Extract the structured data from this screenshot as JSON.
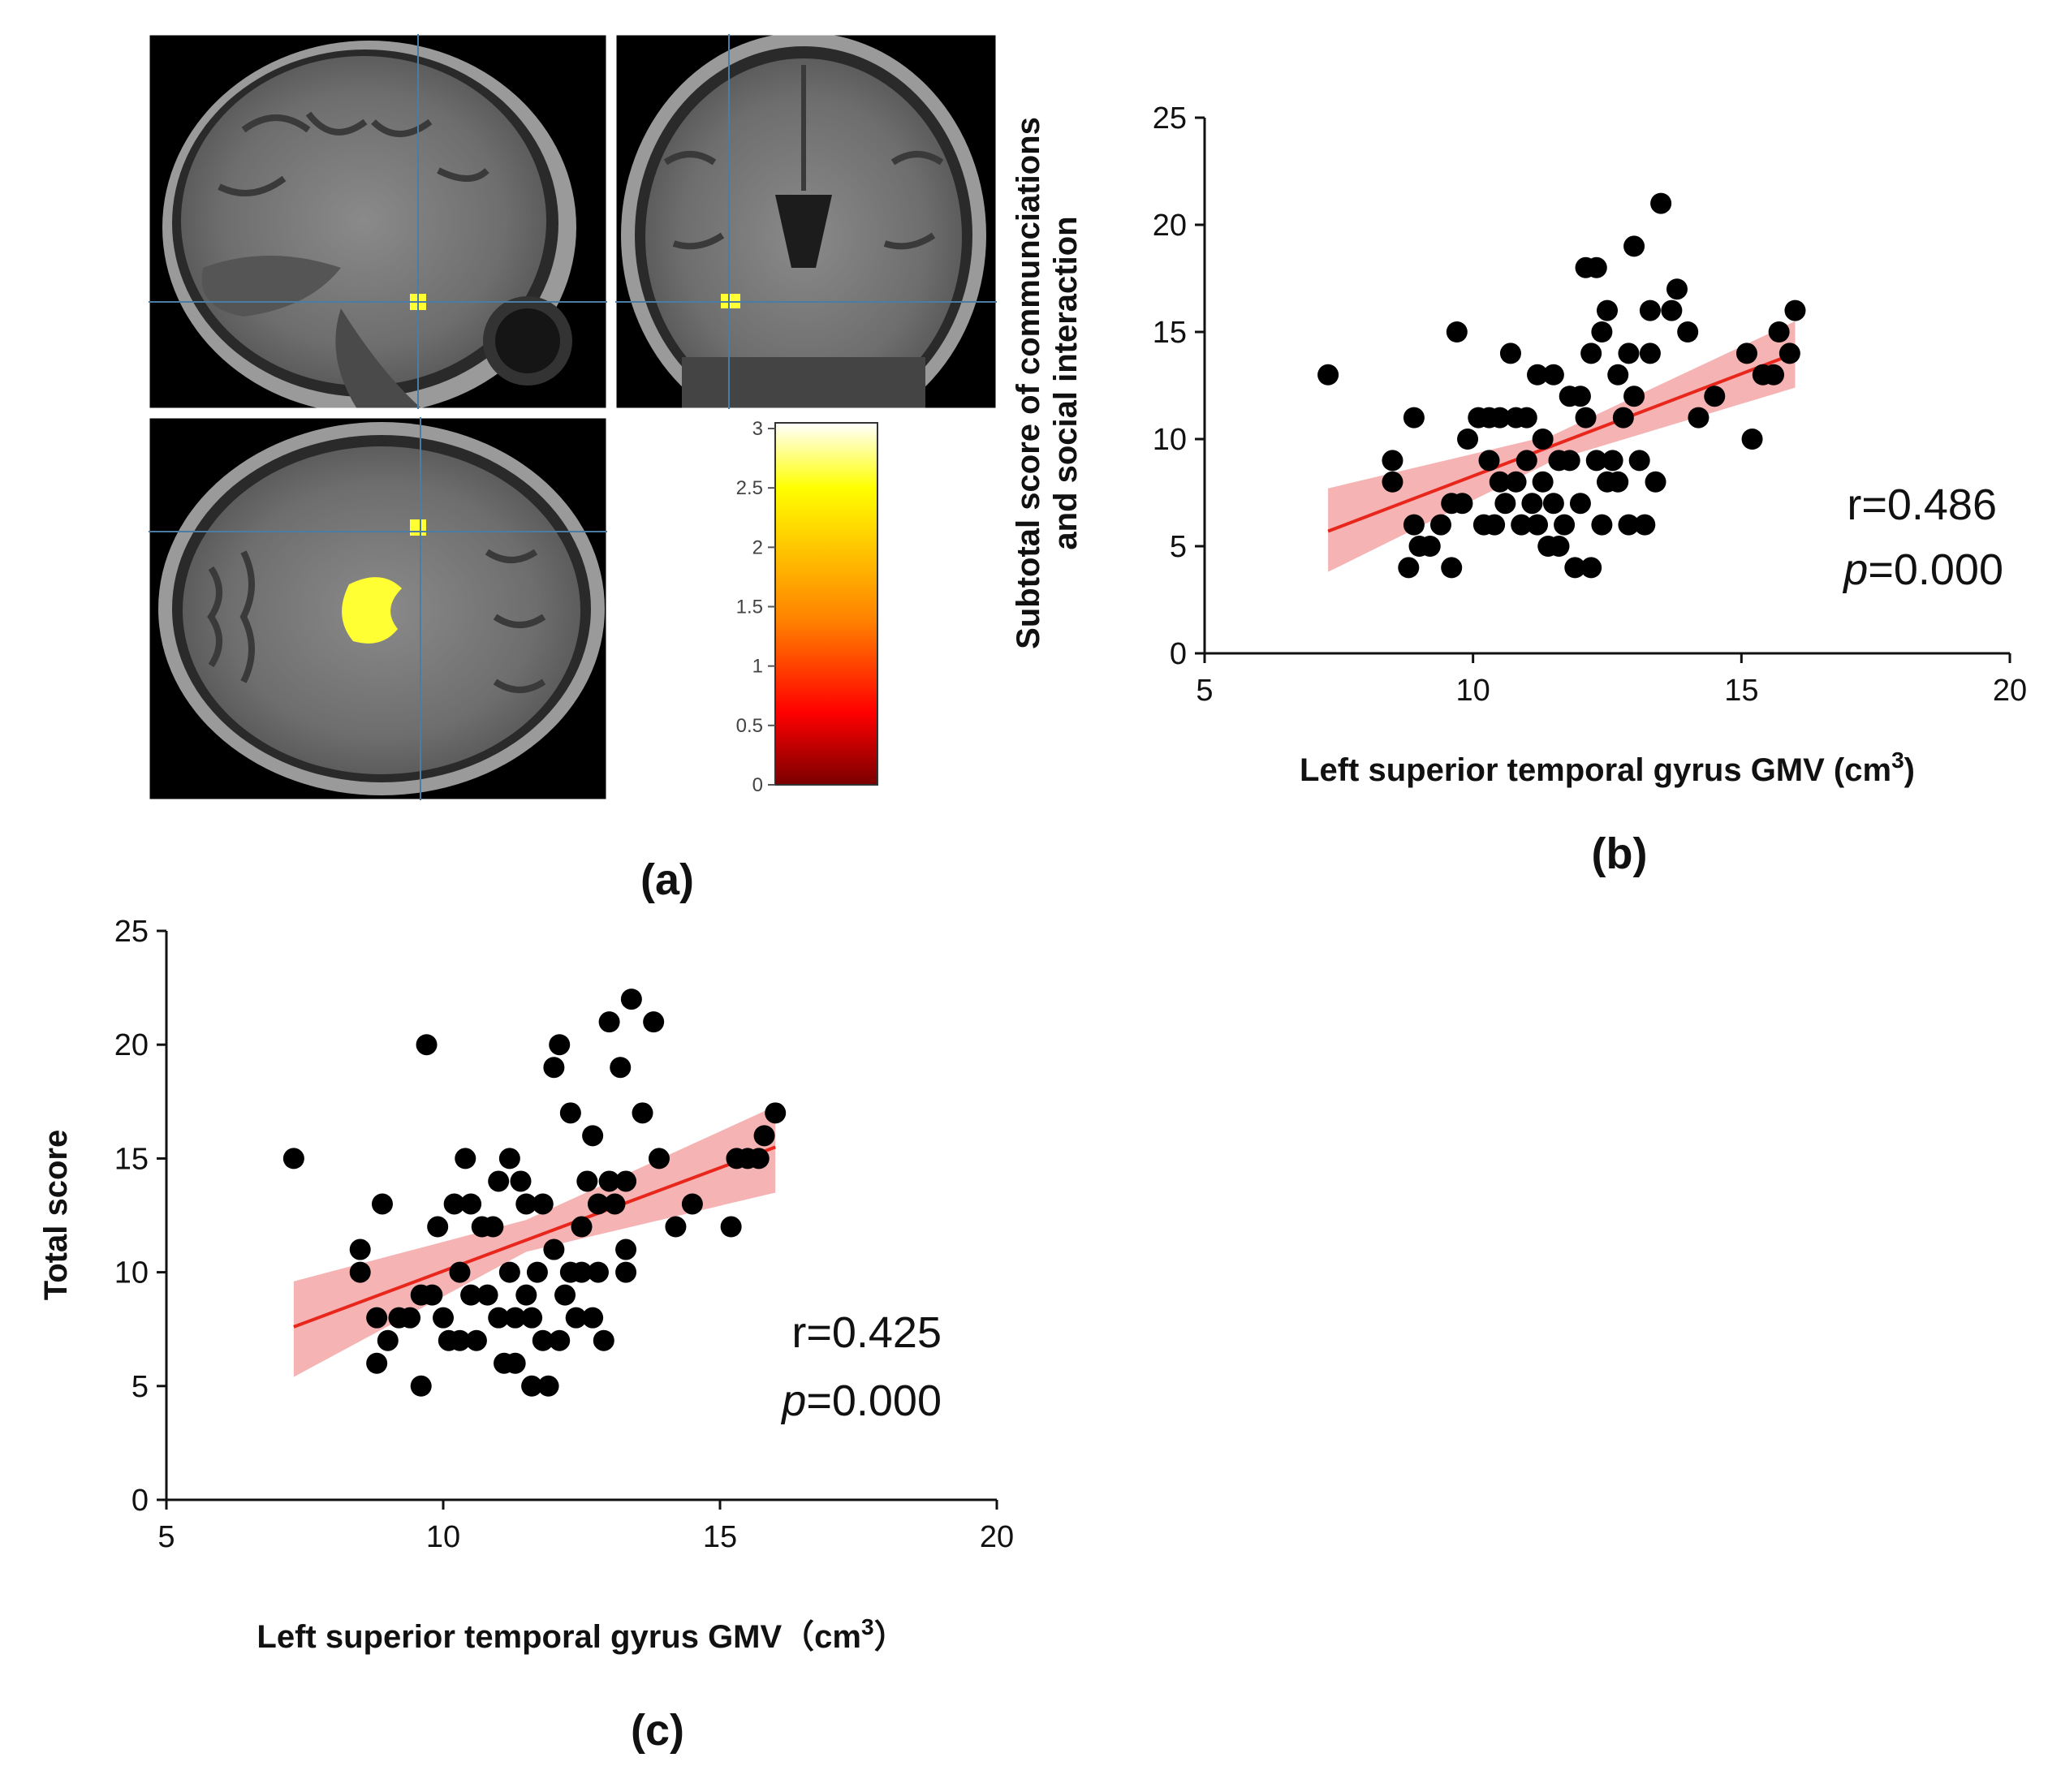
{
  "figure": {
    "panel_a": {
      "label": "(a)",
      "colorbar": {
        "ticks": [
          "3",
          "2.5",
          "2",
          "1.5",
          "1",
          "0.5",
          "0"
        ],
        "colors": [
          "#ffffff",
          "#ffff00",
          "#ff8000",
          "#ff0000",
          "#7a0000"
        ]
      }
    },
    "panel_b": {
      "label": "(b)"
    },
    "panel_c": {
      "label": "(c)"
    }
  },
  "chart_data": [
    {
      "id": "b",
      "type": "scatter",
      "xlabel": "Left superior temporal gyrus GMV (cm",
      "xlabel_sup": "3",
      "xlabel_end": ")",
      "ylabel_line1": "Subtotal score of communciations",
      "ylabel_line2": "and social interaction",
      "xlim": [
        5,
        20
      ],
      "ylim": [
        0,
        25
      ],
      "xticks": [
        5,
        10,
        15,
        20
      ],
      "yticks": [
        0,
        5,
        10,
        15,
        20,
        25
      ],
      "r_text": "r=0.486",
      "p_italic": "p",
      "p_rest": "=0.000",
      "regression": {
        "x": [
          7.3,
          16.0
        ],
        "y": [
          5.7,
          14.0
        ]
      },
      "ci_band": {
        "x": [
          7.3,
          11.5,
          16.0
        ],
        "upper": [
          7.7,
          10.2,
          15.5
        ],
        "lower": [
          3.8,
          9.0,
          12.4
        ]
      },
      "colors": {
        "points": "#000000",
        "line": "#e8261c",
        "band": "#f08a8a"
      },
      "points": [
        [
          7.3,
          13
        ],
        [
          8.5,
          9
        ],
        [
          8.5,
          8
        ],
        [
          8.8,
          4
        ],
        [
          8.9,
          11
        ],
        [
          8.9,
          6
        ],
        [
          9.0,
          5
        ],
        [
          9.2,
          5
        ],
        [
          9.4,
          6
        ],
        [
          9.6,
          4
        ],
        [
          9.6,
          7
        ],
        [
          9.7,
          15
        ],
        [
          9.8,
          7
        ],
        [
          9.9,
          10
        ],
        [
          10.1,
          11
        ],
        [
          10.2,
          6
        ],
        [
          10.3,
          11
        ],
        [
          10.3,
          9
        ],
        [
          10.4,
          6
        ],
        [
          10.5,
          11
        ],
        [
          10.5,
          8
        ],
        [
          10.6,
          7
        ],
        [
          10.7,
          14
        ],
        [
          10.8,
          11
        ],
        [
          10.8,
          8
        ],
        [
          10.9,
          6
        ],
        [
          11.0,
          9
        ],
        [
          11.0,
          11
        ],
        [
          11.1,
          7
        ],
        [
          11.2,
          6
        ],
        [
          11.2,
          13
        ],
        [
          11.3,
          10
        ],
        [
          11.3,
          8
        ],
        [
          11.4,
          5
        ],
        [
          11.5,
          7
        ],
        [
          11.5,
          13
        ],
        [
          11.6,
          5
        ],
        [
          11.6,
          9
        ],
        [
          11.7,
          6
        ],
        [
          11.8,
          12
        ],
        [
          11.8,
          9
        ],
        [
          11.9,
          4
        ],
        [
          12.0,
          12
        ],
        [
          12.0,
          7
        ],
        [
          12.1,
          18
        ],
        [
          12.1,
          11
        ],
        [
          12.2,
          14
        ],
        [
          12.2,
          4
        ],
        [
          12.3,
          18
        ],
        [
          12.3,
          9
        ],
        [
          12.4,
          6
        ],
        [
          12.4,
          15
        ],
        [
          12.5,
          8
        ],
        [
          12.5,
          16
        ],
        [
          12.6,
          9
        ],
        [
          12.7,
          13
        ],
        [
          12.7,
          8
        ],
        [
          12.8,
          11
        ],
        [
          12.9,
          14
        ],
        [
          12.9,
          6
        ],
        [
          13.0,
          19
        ],
        [
          13.0,
          12
        ],
        [
          13.1,
          9
        ],
        [
          13.2,
          6
        ],
        [
          13.3,
          14
        ],
        [
          13.3,
          16
        ],
        [
          13.4,
          8
        ],
        [
          13.5,
          21
        ],
        [
          13.7,
          16
        ],
        [
          13.8,
          17
        ],
        [
          14.0,
          15
        ],
        [
          14.2,
          11
        ],
        [
          14.5,
          12
        ],
        [
          15.1,
          14
        ],
        [
          15.2,
          10
        ],
        [
          15.4,
          13
        ],
        [
          15.6,
          13
        ],
        [
          15.7,
          15
        ],
        [
          15.9,
          14
        ],
        [
          16.0,
          16
        ]
      ]
    },
    {
      "id": "c",
      "type": "scatter",
      "xlabel": "Left superior temporal gyrus GMV（cm",
      "xlabel_sup": "3",
      "xlabel_end": "）",
      "ylabel_line1": "Total score",
      "xlim": [
        5,
        20
      ],
      "ylim": [
        0,
        25
      ],
      "xticks": [
        5,
        10,
        15,
        20
      ],
      "yticks": [
        0,
        5,
        10,
        15,
        20,
        25
      ],
      "r_text": "r=0.425",
      "p_italic": "p",
      "p_rest": "=0.000",
      "regression": {
        "x": [
          7.3,
          16.0
        ],
        "y": [
          7.6,
          15.5
        ]
      },
      "ci_band": {
        "x": [
          7.3,
          11.5,
          16.0
        ],
        "upper": [
          9.6,
          12.3,
          17.3
        ],
        "lower": [
          5.4,
          10.9,
          13.5
        ]
      },
      "colors": {
        "points": "#000000",
        "line": "#e8261c",
        "band": "#f08a8a"
      },
      "points": [
        [
          7.3,
          15
        ],
        [
          8.5,
          11
        ],
        [
          8.5,
          10
        ],
        [
          8.8,
          6
        ],
        [
          8.8,
          8
        ],
        [
          8.9,
          13
        ],
        [
          9.0,
          7
        ],
        [
          9.2,
          8
        ],
        [
          9.4,
          8
        ],
        [
          9.6,
          9
        ],
        [
          9.6,
          5
        ],
        [
          9.7,
          20
        ],
        [
          9.8,
          9
        ],
        [
          9.9,
          12
        ],
        [
          10.0,
          8
        ],
        [
          10.1,
          7
        ],
        [
          10.2,
          13
        ],
        [
          10.3,
          10
        ],
        [
          10.3,
          7
        ],
        [
          10.4,
          15
        ],
        [
          10.5,
          13
        ],
        [
          10.5,
          9
        ],
        [
          10.6,
          7
        ],
        [
          10.7,
          12
        ],
        [
          10.8,
          9
        ],
        [
          10.9,
          12
        ],
        [
          11.0,
          14
        ],
        [
          11.0,
          8
        ],
        [
          11.1,
          6
        ],
        [
          11.2,
          10
        ],
        [
          11.2,
          15
        ],
        [
          11.3,
          8
        ],
        [
          11.3,
          6
        ],
        [
          11.4,
          14
        ],
        [
          11.5,
          9
        ],
        [
          11.5,
          13
        ],
        [
          11.6,
          8
        ],
        [
          11.6,
          5
        ],
        [
          11.7,
          10
        ],
        [
          11.8,
          13
        ],
        [
          11.8,
          7
        ],
        [
          11.9,
          5
        ],
        [
          12.0,
          19
        ],
        [
          12.0,
          11
        ],
        [
          12.1,
          20
        ],
        [
          12.1,
          7
        ],
        [
          12.2,
          9
        ],
        [
          12.3,
          17
        ],
        [
          12.3,
          10
        ],
        [
          12.4,
          8
        ],
        [
          12.5,
          12
        ],
        [
          12.5,
          10
        ],
        [
          12.6,
          14
        ],
        [
          12.7,
          8
        ],
        [
          12.7,
          16
        ],
        [
          12.8,
          13
        ],
        [
          12.8,
          10
        ],
        [
          12.9,
          7
        ],
        [
          13.0,
          21
        ],
        [
          13.0,
          14
        ],
        [
          13.1,
          13
        ],
        [
          13.2,
          19
        ],
        [
          13.3,
          11
        ],
        [
          13.3,
          14
        ],
        [
          13.3,
          10
        ],
        [
          13.4,
          22
        ],
        [
          13.6,
          17
        ],
        [
          13.8,
          21
        ],
        [
          13.9,
          15
        ],
        [
          14.2,
          12
        ],
        [
          14.5,
          13
        ],
        [
          15.2,
          12
        ],
        [
          15.3,
          15
        ],
        [
          15.5,
          15
        ],
        [
          15.7,
          15
        ],
        [
          15.8,
          16
        ],
        [
          16.0,
          17
        ]
      ]
    }
  ]
}
